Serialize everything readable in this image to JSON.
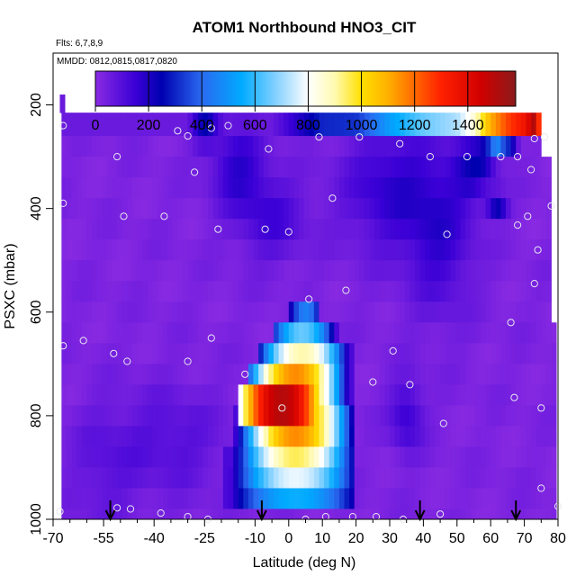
{
  "chart_data": {
    "type": "heatmap",
    "title": "ATOM1 Northbound HNO3_CIT",
    "flights_label": "Flts: 6,7,8,9",
    "dates_label": "MMDD: 0812,0815,0817,0820",
    "xlabel": "Latitude (deg N)",
    "ylabel": "PSXC (mbar)",
    "xlim": [
      -70,
      80
    ],
    "ylim": [
      1000,
      100
    ],
    "x_ticks": [
      -70,
      -55,
      -40,
      -25,
      -10,
      0,
      10,
      20,
      30,
      40,
      50,
      60,
      70,
      80
    ],
    "x_minor_ticks": [
      -65,
      -60,
      -50,
      -45,
      -35,
      -30,
      -20,
      -15,
      -5,
      5,
      15,
      25,
      35,
      45,
      55,
      65,
      75
    ],
    "y_ticks": [
      200,
      400,
      600,
      800,
      1000
    ],
    "colorbar": {
      "range": [
        0,
        1580
      ],
      "ticks": [
        0,
        200,
        400,
        600,
        800,
        1000,
        1200,
        1400
      ],
      "stops": [
        {
          "v": 0,
          "color": "#8a2be2"
        },
        {
          "v": 150,
          "color": "#3a00d6"
        },
        {
          "v": 250,
          "color": "#0000b0"
        },
        {
          "v": 400,
          "color": "#2a6af0"
        },
        {
          "v": 550,
          "color": "#00aaff"
        },
        {
          "v": 700,
          "color": "#9ad8ff"
        },
        {
          "v": 800,
          "color": "#ffffff"
        },
        {
          "v": 900,
          "color": "#fffab0"
        },
        {
          "v": 1000,
          "color": "#ffe000"
        },
        {
          "v": 1100,
          "color": "#ffb000"
        },
        {
          "v": 1300,
          "color": "#ff2000"
        },
        {
          "v": 1450,
          "color": "#d00000"
        },
        {
          "v": 1580,
          "color": "#8b1a1a"
        }
      ]
    },
    "pressure_levels": [
      180,
      215,
      260,
      300,
      340,
      380,
      420,
      460,
      500,
      540,
      580,
      620,
      660,
      700,
      740,
      780,
      820,
      860,
      900,
      940,
      980,
      1000
    ],
    "lat_domain": [
      -67.5,
      77
    ],
    "blobs": [
      {
        "lat": -25,
        "p": 250,
        "slat": 4,
        "sp": 25,
        "v": 250
      },
      {
        "lat": -15,
        "p": 320,
        "slat": 8,
        "sp": 80,
        "v": 150
      },
      {
        "lat": -5,
        "p": 420,
        "slat": 10,
        "sp": 80,
        "v": 110
      },
      {
        "lat": 30,
        "p": 360,
        "slat": 14,
        "sp": 120,
        "v": 140
      },
      {
        "lat": 45,
        "p": 450,
        "slat": 10,
        "sp": 150,
        "v": 130
      },
      {
        "lat": 55,
        "p": 320,
        "slat": 6,
        "sp": 60,
        "v": 160
      },
      {
        "lat": 62,
        "p": 390,
        "slat": 3,
        "sp": 20,
        "v": 260
      },
      {
        "lat": 58,
        "p": 300,
        "slat": 3,
        "sp": 15,
        "v": 300
      },
      {
        "lat": 62,
        "p": 285,
        "slat": 3,
        "sp": 15,
        "v": 450
      },
      {
        "lat": 66,
        "p": 290,
        "slat": 2,
        "sp": 15,
        "v": 300
      },
      {
        "lat": 35,
        "p": 800,
        "slat": 5,
        "sp": 70,
        "v": 130
      },
      {
        "lat": -35,
        "p": 850,
        "slat": 15,
        "sp": 100,
        "v": 80
      },
      {
        "lat": -55,
        "p": 900,
        "slat": 10,
        "sp": 120,
        "v": 60
      }
    ],
    "top_layer": {
      "lat": [
        10,
        20,
        30,
        40,
        50,
        55,
        60,
        65,
        70,
        72,
        74,
        75,
        76
      ],
      "v": [
        300,
        320,
        520,
        650,
        720,
        850,
        1100,
        1250,
        1350,
        1450,
        1580,
        400,
        700
      ]
    },
    "plume_rows": [
      {
        "p": 620,
        "lat0": 0,
        "lat1": 9,
        "peak": 5,
        "v": 450
      },
      {
        "p": 660,
        "lat0": -5,
        "lat1": 15,
        "peak": 4,
        "v": 650
      },
      {
        "p": 700,
        "lat0": -9,
        "lat1": 19,
        "peak": 4,
        "v": 900
      },
      {
        "p": 740,
        "lat0": -12,
        "lat1": 20,
        "peak": 2,
        "v": 1150
      },
      {
        "p": 780,
        "lat0": -15,
        "lat1": 20,
        "peak": -2,
        "v": 1500
      },
      {
        "p": 820,
        "lat0": -16,
        "lat1": 20,
        "peak": 2,
        "v": 1150
      },
      {
        "p": 860,
        "lat0": -17,
        "lat1": 20,
        "peak": 2,
        "v": 950
      },
      {
        "p": 900,
        "lat0": -19,
        "lat1": 20,
        "peak": 2,
        "v": 780
      },
      {
        "p": 940,
        "lat0": -20,
        "lat1": 20,
        "peak": 2,
        "v": 560
      }
    ],
    "points": [
      {
        "lat": -67,
        "p": 240
      },
      {
        "lat": -51,
        "p": 300
      },
      {
        "lat": -23,
        "p": 245
      },
      {
        "lat": -18,
        "p": 240
      },
      {
        "lat": -33,
        "p": 250
      },
      {
        "lat": -30,
        "p": 260
      },
      {
        "lat": -28,
        "p": 330
      },
      {
        "lat": -6,
        "p": 285
      },
      {
        "lat": 9,
        "p": 262
      },
      {
        "lat": 21,
        "p": 262
      },
      {
        "lat": 33,
        "p": 275
      },
      {
        "lat": 42,
        "p": 300
      },
      {
        "lat": 53,
        "p": 300
      },
      {
        "lat": 63,
        "p": 300
      },
      {
        "lat": 68,
        "p": 300
      },
      {
        "lat": 73,
        "p": 265
      },
      {
        "lat": 76,
        "p": 262
      },
      {
        "lat": 72,
        "p": 325
      },
      {
        "lat": -67,
        "p": 390
      },
      {
        "lat": -49,
        "p": 415
      },
      {
        "lat": -37,
        "p": 415
      },
      {
        "lat": 13,
        "p": 380
      },
      {
        "lat": 71,
        "p": 415
      },
      {
        "lat": 78,
        "p": 395
      },
      {
        "lat": -21,
        "p": 440
      },
      {
        "lat": -7,
        "p": 440
      },
      {
        "lat": 0,
        "p": 445
      },
      {
        "lat": 47,
        "p": 450
      },
      {
        "lat": 68,
        "p": 432
      },
      {
        "lat": 74,
        "p": 480
      },
      {
        "lat": 73,
        "p": 545
      },
      {
        "lat": 17,
        "p": 558
      },
      {
        "lat": 6,
        "p": 575
      },
      {
        "lat": 66,
        "p": 620
      },
      {
        "lat": -67,
        "p": 665
      },
      {
        "lat": -61,
        "p": 655
      },
      {
        "lat": -23,
        "p": 650
      },
      {
        "lat": -52,
        "p": 680
      },
      {
        "lat": -48,
        "p": 695
      },
      {
        "lat": -30,
        "p": 695
      },
      {
        "lat": 31,
        "p": 675
      },
      {
        "lat": -13,
        "p": 720
      },
      {
        "lat": 25,
        "p": 735
      },
      {
        "lat": 36,
        "p": 740
      },
      {
        "lat": 67,
        "p": 765
      },
      {
        "lat": 75,
        "p": 785
      },
      {
        "lat": -2,
        "p": 785
      },
      {
        "lat": 46,
        "p": 815
      },
      {
        "lat": 75,
        "p": 940
      },
      {
        "lat": 80,
        "p": 975
      },
      {
        "lat": -68,
        "p": 985
      },
      {
        "lat": -51,
        "p": 978
      },
      {
        "lat": -47,
        "p": 980
      },
      {
        "lat": -38,
        "p": 988
      },
      {
        "lat": -30,
        "p": 995
      },
      {
        "lat": -24,
        "p": 1000
      },
      {
        "lat": 5,
        "p": 1000
      },
      {
        "lat": 11,
        "p": 995
      },
      {
        "lat": 19,
        "p": 995
      },
      {
        "lat": 26,
        "p": 995
      },
      {
        "lat": 34,
        "p": 1000
      },
      {
        "lat": 45,
        "p": 990
      }
    ],
    "arrows_lat": [
      -53,
      -8,
      39,
      67.5
    ]
  }
}
